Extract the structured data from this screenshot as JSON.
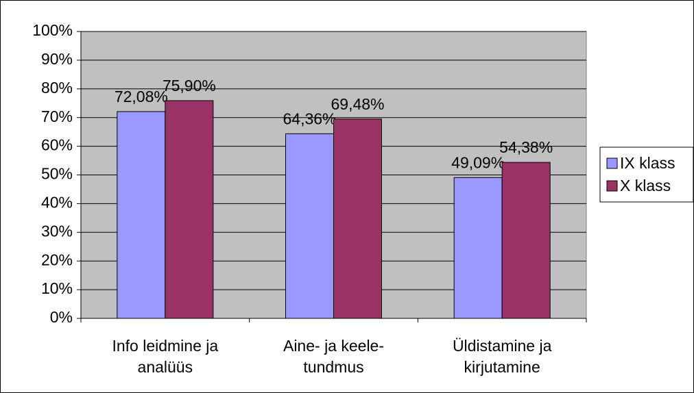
{
  "chart_data": {
    "type": "bar",
    "categories": [
      [
        "Info leidmine ja",
        "analüüs"
      ],
      [
        "Aine- ja keele-",
        "tundmus"
      ],
      [
        "Üldistamine ja",
        "kirjutamine"
      ]
    ],
    "series": [
      {
        "name": "IX klass",
        "color": "#9999ff",
        "values": [
          72.08,
          64.36,
          49.09
        ],
        "value_labels": [
          "72,08%",
          "64,36%",
          "49,09%"
        ]
      },
      {
        "name": "X klass",
        "color": "#993366",
        "values": [
          75.9,
          69.48,
          54.38
        ],
        "value_labels": [
          "75,90%",
          "69,48%",
          "54,38%"
        ]
      }
    ],
    "ylim": [
      0,
      100
    ],
    "yticks": [
      {
        "value": 0,
        "label": "0%"
      },
      {
        "value": 10,
        "label": "10%"
      },
      {
        "value": 20,
        "label": "20%"
      },
      {
        "value": 30,
        "label": "30%"
      },
      {
        "value": 40,
        "label": "40%"
      },
      {
        "value": 50,
        "label": "50%"
      },
      {
        "value": 60,
        "label": "60%"
      },
      {
        "value": 70,
        "label": "70%"
      },
      {
        "value": 80,
        "label": "80%"
      },
      {
        "value": 90,
        "label": "90%"
      },
      {
        "value": 100,
        "label": "100%"
      }
    ],
    "grid": true,
    "plot_background": "#c0c0c0",
    "legend": "right"
  }
}
